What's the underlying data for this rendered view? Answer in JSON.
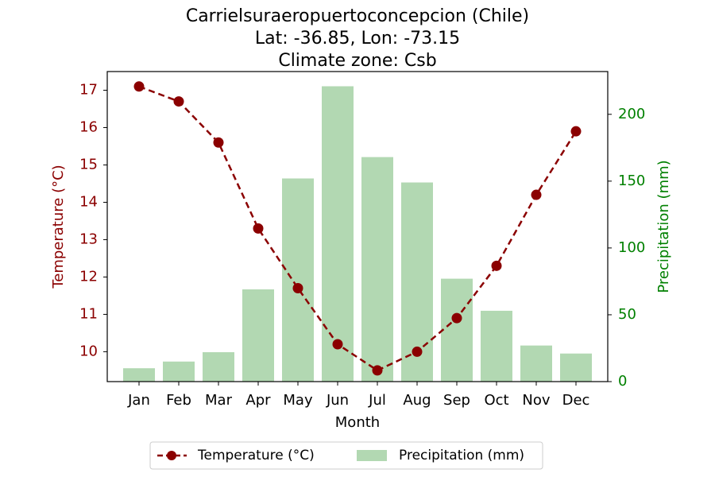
{
  "chart_data": {
    "type": "bar+line",
    "title_lines": [
      "Carrielsuraeropuertoconcepcion (Chile)",
      "Lat: -36.85, Lon: -73.15",
      "Climate zone: Csb"
    ],
    "categories": [
      "Jan",
      "Feb",
      "Mar",
      "Apr",
      "May",
      "Jun",
      "Jul",
      "Aug",
      "Sep",
      "Oct",
      "Nov",
      "Dec"
    ],
    "xlabel": "Month",
    "series": [
      {
        "name": "Temperature (°C)",
        "kind": "line",
        "axis": "left",
        "color": "#8b0000",
        "line_style": "dashed",
        "marker": "circle",
        "values": [
          17.1,
          16.7,
          15.6,
          13.3,
          11.7,
          10.2,
          9.5,
          10.0,
          10.9,
          12.3,
          14.2,
          15.9
        ]
      },
      {
        "name": "Precipitation (mm)",
        "kind": "bar",
        "axis": "right",
        "color": "#b2d8b2",
        "values": [
          10,
          15,
          22,
          69,
          152,
          221,
          168,
          149,
          77,
          53,
          27,
          21
        ]
      }
    ],
    "y_left": {
      "label": "Temperature (°C)",
      "color": "#8b0000",
      "ticks": [
        10,
        11,
        12,
        13,
        14,
        15,
        16,
        17
      ],
      "range": [
        9.2,
        17.5
      ]
    },
    "y_right": {
      "label": "Precipitation (mm)",
      "color": "#008000",
      "ticks": [
        0,
        50,
        100,
        150,
        200
      ],
      "range": [
        0,
        232
      ]
    },
    "legend": {
      "placement": "bottom-center",
      "items": [
        "Temperature (°C)",
        "Precipitation (mm)"
      ]
    },
    "grid": false
  }
}
